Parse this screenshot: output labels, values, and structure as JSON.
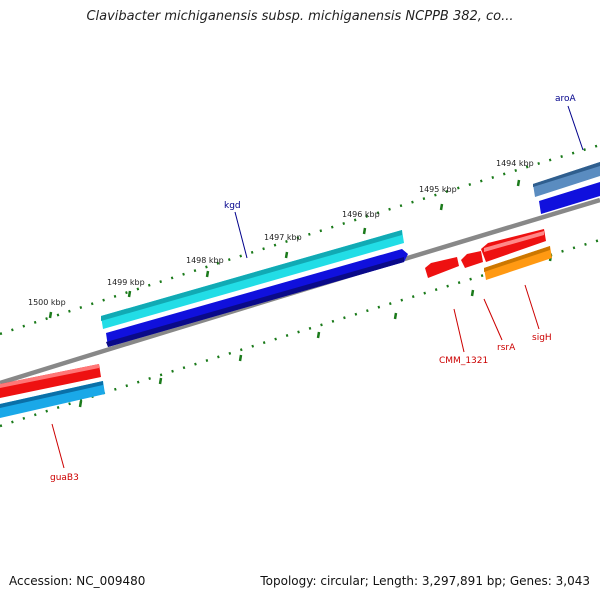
{
  "title": "Clavibacter michiganensis subsp. michiganensis NCPPB 382, co...",
  "accession_label": "Accession: NC_009480",
  "summary_label": "Topology: circular; Length: 3,297,891 bp; Genes: 3,043",
  "kbp_labels": [
    "1494 kbp",
    "1495 kbp",
    "1496 kbp",
    "1497 kbp",
    "1498 kbp",
    "1499 kbp",
    "1500 kbp"
  ],
  "gene_labels": {
    "aroA": "aroA",
    "kgd": "kgd",
    "cmm1321": "CMM_1321",
    "rsrA": "rsrA",
    "sigH": "sigH",
    "guaB3": "guaB3"
  },
  "colors": {
    "backbone": "#808080",
    "tick": "#1a7a1a",
    "label_blue": "#00008b",
    "label_red": "#cc0000",
    "cyan": "#20e0e8",
    "blue": "#1010dd",
    "red": "#ee1111",
    "orange": "#ff9910",
    "steelblue": "#5588bb",
    "skyblue": "#1ba8e8"
  }
}
